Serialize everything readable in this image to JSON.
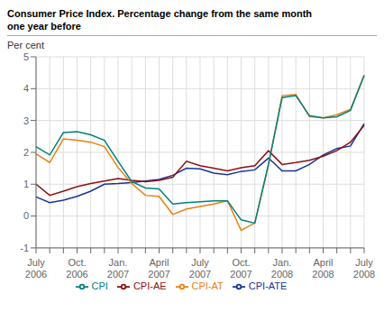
{
  "chart_data": {
    "type": "line",
    "title": "Consumer Price Index. Percentage change from the same month\none year before",
    "y_label": "Per cent",
    "categories": [
      "July\n2006",
      null,
      null,
      "Oct.\n2006",
      null,
      null,
      "Jan.\n2007",
      null,
      null,
      "April\n2007",
      null,
      null,
      "July\n2007",
      null,
      null,
      "Oct.\n2007",
      null,
      null,
      "Jan.\n2008",
      null,
      null,
      "April\n2008",
      null,
      null,
      "July\n2008"
    ],
    "series": [
      {
        "name": "CPI-ATE",
        "color": "#1a3399",
        "values": [
          0.6,
          0.42,
          0.5,
          0.62,
          0.78,
          1.0,
          1.02,
          1.05,
          1.1,
          1.15,
          1.28,
          1.5,
          1.48,
          1.35,
          1.3,
          1.4,
          1.45,
          1.82,
          1.42,
          1.42,
          1.62,
          1.92,
          2.12,
          2.2,
          2.9
        ]
      },
      {
        "name": "CPI-AE",
        "color": "#8b1010",
        "values": [
          1.0,
          0.65,
          0.78,
          0.92,
          1.02,
          1.1,
          1.18,
          1.12,
          1.08,
          1.12,
          1.22,
          1.72,
          1.58,
          1.5,
          1.42,
          1.52,
          1.58,
          2.05,
          1.62,
          1.68,
          1.75,
          1.88,
          2.05,
          2.32,
          2.85
        ]
      },
      {
        "name": "CPI-AT",
        "color": "#e88010",
        "values": [
          1.95,
          1.68,
          2.42,
          2.38,
          2.32,
          2.18,
          1.52,
          1.02,
          0.65,
          0.62,
          0.05,
          0.22,
          0.3,
          0.38,
          0.48,
          -0.45,
          -0.22,
          1.62,
          3.78,
          3.82,
          3.12,
          3.08,
          3.18,
          3.35,
          4.42
        ]
      },
      {
        "name": "CPI",
        "color": "#008080",
        "values": [
          2.18,
          1.92,
          2.62,
          2.65,
          2.55,
          2.38,
          1.72,
          1.08,
          0.88,
          0.85,
          0.38,
          0.42,
          0.45,
          0.48,
          0.48,
          -0.12,
          -0.22,
          1.62,
          3.72,
          3.78,
          3.15,
          3.08,
          3.12,
          3.32,
          4.42
        ]
      }
    ],
    "ylim": [
      -1,
      5
    ],
    "yticks": [
      -1,
      0,
      1,
      2,
      3,
      4,
      5
    ],
    "grid": true,
    "legend": "bottom"
  }
}
